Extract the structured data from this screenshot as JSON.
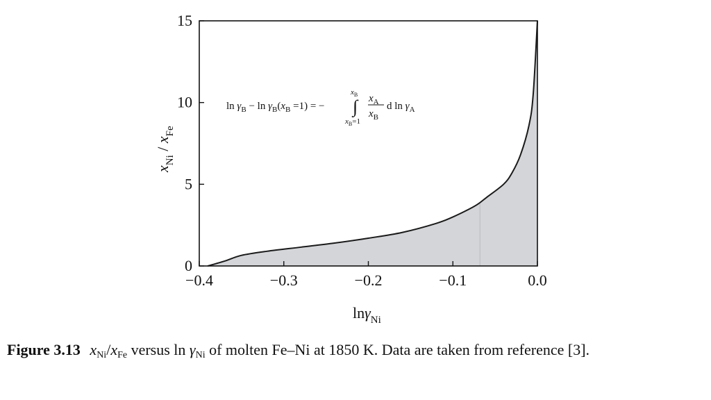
{
  "chart_data": {
    "type": "area",
    "x": [
      -0.39,
      -0.37,
      -0.35,
      -0.32,
      -0.28,
      -0.24,
      -0.2,
      -0.16,
      -0.12,
      -0.1,
      -0.08,
      -0.07,
      -0.06,
      -0.04,
      -0.03,
      -0.02,
      -0.01,
      -0.005,
      0.0
    ],
    "y": [
      0.0,
      0.3,
      0.65,
      0.9,
      1.15,
      1.4,
      1.7,
      2.05,
      2.6,
      3.0,
      3.5,
      3.8,
      4.2,
      5.0,
      5.7,
      6.8,
      8.6,
      10.5,
      15.0
    ],
    "xlim": [
      -0.4,
      0.0
    ],
    "ylim": [
      0,
      15
    ],
    "x_ticks": [
      -0.4,
      -0.3,
      -0.2,
      -0.1,
      0.0
    ],
    "x_tick_labels": [
      "−0.4",
      "−0.3",
      "−0.2",
      "−0.1",
      "0.0"
    ],
    "y_ticks": [
      0,
      5,
      10,
      15
    ],
    "y_tick_labels": [
      "0",
      "5",
      "10",
      "15"
    ],
    "xlabel": {
      "main": "ln",
      "sym": "γ",
      "sub": "Ni"
    },
    "ylabel": {
      "x1": "x",
      "s1": "Ni",
      "slash": " / ",
      "x2": "x",
      "s2": "Fe"
    },
    "marker_x": -0.068,
    "fill_color": "#d3d5d8",
    "line_color": "#1a1a1a",
    "grid": false,
    "annotation": {
      "lhs_ln1": "ln ",
      "lhs_g1": "γ",
      "lhs_s1": "B",
      "minus1": " − ln ",
      "lhs_g2": "γ",
      "lhs_s2": "B",
      "lhs_paren_open": "(",
      "lhs_xb": "x",
      "lhs_xb_s": "B",
      "lhs_eq1": " =1) = −",
      "integral": "∫",
      "upper_x": "x",
      "upper_s": "B",
      "lower_x": "x",
      "lower_s": "B",
      "lower_eq": "=1",
      "num_x": "x",
      "num_s": "A",
      "den_x": "x",
      "den_s": "B",
      "tail_d": "d ln ",
      "tail_g": "γ",
      "tail_s": "A"
    }
  },
  "caption": {
    "label": "Figure 3.13",
    "x1": "x",
    "s1": "Ni",
    "slash": "/",
    "x2": "x",
    "s2": "Fe",
    "versus": " versus ln ",
    "gamma": "γ",
    "s3": "Ni",
    "rest": " of molten Fe–Ni at 1850 K. Data are taken from reference [3]."
  }
}
